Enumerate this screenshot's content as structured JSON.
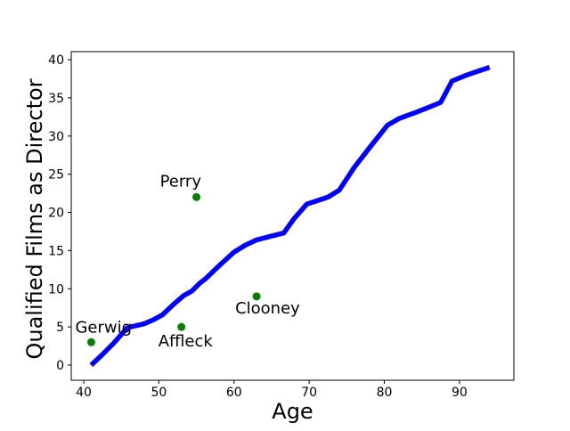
{
  "chart_data": {
    "type": "line",
    "title": "",
    "xlabel": "Age",
    "ylabel": "Qualified Films as Director",
    "x_ticks": [
      40,
      50,
      60,
      70,
      80,
      90
    ],
    "y_ticks": [
      0,
      5,
      10,
      15,
      20,
      25,
      30,
      35,
      40
    ],
    "xlim": [
      38.34,
      97.24
    ],
    "ylim": [
      -1.98,
      41.05
    ],
    "grid": false,
    "legend": null,
    "axis_color": "#000000",
    "background_color": "#ffffff",
    "series": [
      {
        "name": "career-trajectory-line",
        "type": "line",
        "color": "#0000ff",
        "stroke_width": 5.5,
        "points": [
          [
            41.0,
            0.0
          ],
          [
            42.5,
            1.4
          ],
          [
            44.0,
            2.9
          ],
          [
            45.8,
            4.9
          ],
          [
            48.0,
            5.4
          ],
          [
            49.2,
            5.9
          ],
          [
            50.5,
            6.6
          ],
          [
            52.0,
            8.0
          ],
          [
            53.3,
            9.1
          ],
          [
            54.4,
            9.7
          ],
          [
            55.4,
            10.7
          ],
          [
            56.2,
            11.3
          ],
          [
            58.0,
            13.0
          ],
          [
            60.0,
            14.8
          ],
          [
            61.5,
            15.7
          ],
          [
            63.0,
            16.4
          ],
          [
            65.0,
            16.9
          ],
          [
            66.6,
            17.3
          ],
          [
            68.0,
            19.2
          ],
          [
            69.7,
            21.1
          ],
          [
            71.0,
            21.5
          ],
          [
            72.5,
            22.0
          ],
          [
            74.0,
            22.9
          ],
          [
            76.0,
            25.9
          ],
          [
            78.3,
            28.8
          ],
          [
            80.4,
            31.4
          ],
          [
            82.0,
            32.3
          ],
          [
            84.2,
            33.1
          ],
          [
            86.0,
            33.8
          ],
          [
            87.5,
            34.4
          ],
          [
            89.0,
            37.2
          ],
          [
            91.0,
            38.0
          ],
          [
            92.5,
            38.5
          ],
          [
            94.0,
            39.0
          ]
        ]
      },
      {
        "name": "labeled-directors-scatter",
        "type": "scatter",
        "color": "#008000",
        "marker_radius": 4.5,
        "points": [
          {
            "label": "Gerwig",
            "x": 41,
            "y": 3,
            "label_dx": -18,
            "label_dy": -11
          },
          {
            "label": "Affleck",
            "x": 53,
            "y": 5,
            "label_dx": -26,
            "label_dy": 22
          },
          {
            "label": "Perry",
            "x": 55,
            "y": 22,
            "label_dx": -41,
            "label_dy": -12
          },
          {
            "label": "Clooney",
            "x": 63,
            "y": 9,
            "label_dx": -24,
            "label_dy": 19
          }
        ]
      }
    ]
  }
}
